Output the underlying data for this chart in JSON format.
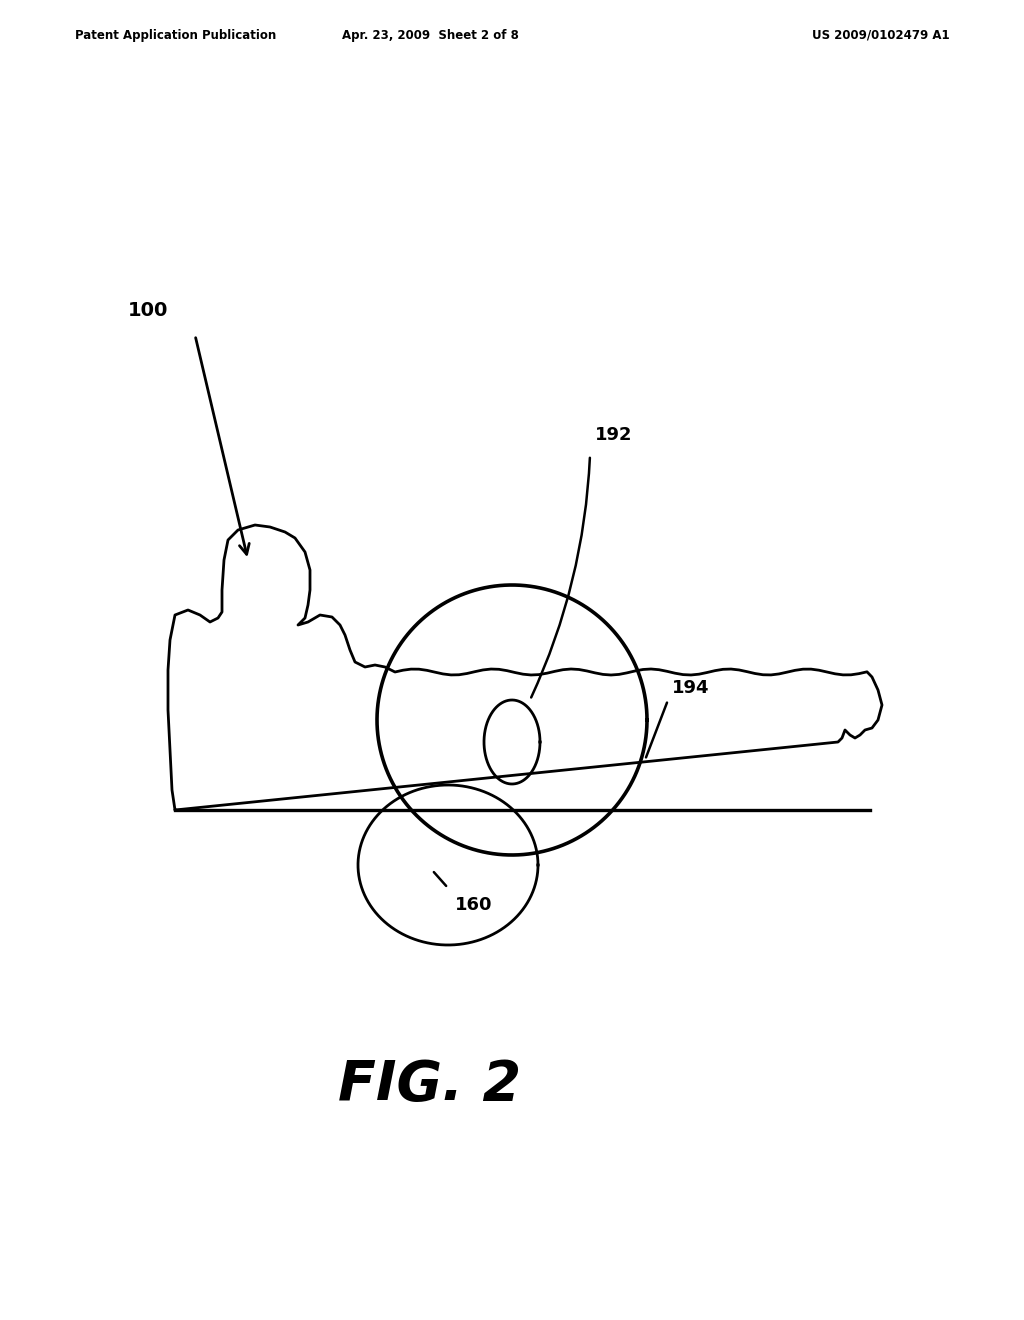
{
  "background_color": "#ffffff",
  "header_left": "Patent Application Publication",
  "header_mid": "Apr. 23, 2009  Sheet 2 of 8",
  "header_right": "US 2009/0102479 A1",
  "figure_label": "FIG. 2",
  "label_100": "100",
  "label_192": "192",
  "label_194": "194",
  "label_160": "160",
  "line_color": "#000000",
  "line_width": 2.0
}
